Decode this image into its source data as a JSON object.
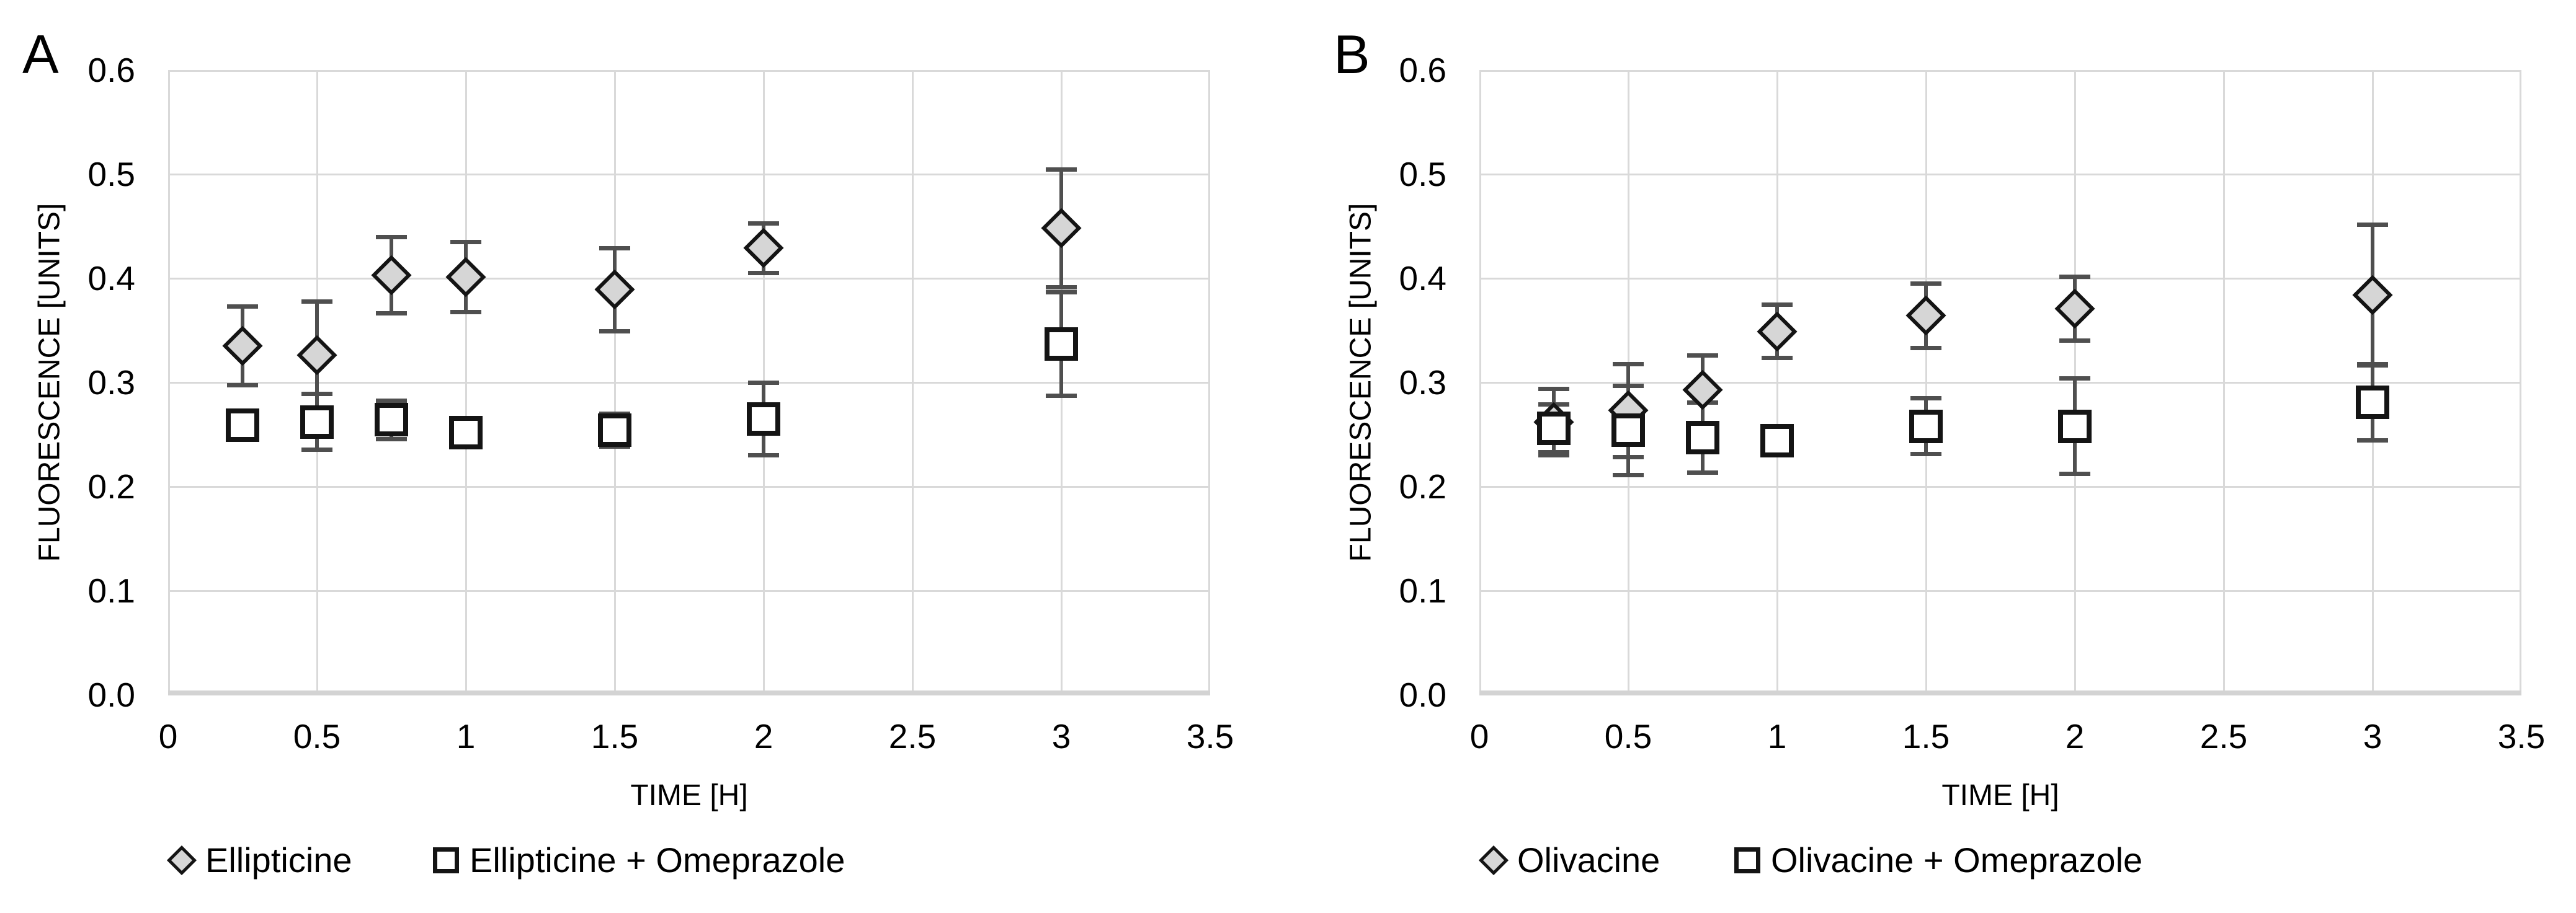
{
  "figure": {
    "description": "Two-panel fluorescence time-course scatter chart",
    "panel_labels": [
      "A",
      "B"
    ]
  },
  "colors": {
    "background": "#ffffff",
    "gridline": "#d9d9d9",
    "axis_line": "#d3d3d3",
    "error_bar": "#4f4f4f",
    "diamond_fill": "#d6d6d6",
    "square_fill": "#ffffff",
    "marker_outline": "#141414",
    "text": "#000000"
  },
  "chart_data": [
    {
      "type": "scatter",
      "panel_label": "A",
      "xlabel": "TIME [H]",
      "ylabel": "FLUORESCENCE [UNITS]",
      "xlim": [
        0,
        3.5
      ],
      "ylim": [
        0.0,
        0.6
      ],
      "grid": true,
      "legend_position": "bottom",
      "x_ticks": [
        0,
        0.5,
        1,
        1.5,
        2,
        2.5,
        3,
        3.5
      ],
      "x_tick_labels": [
        "0",
        "0.5",
        "1",
        "1.5",
        "2",
        "2.5",
        "3",
        "3.5"
      ],
      "y_ticks": [
        0.0,
        0.1,
        0.2,
        0.3,
        0.4,
        0.5,
        0.6
      ],
      "y_tick_labels": [
        "0.0",
        "0.1",
        "0.2",
        "0.3",
        "0.4",
        "0.5",
        "0.6"
      ],
      "x": [
        0.25,
        0.5,
        0.75,
        1,
        1.5,
        2,
        3
      ],
      "series": [
        {
          "name": "Ellipticine",
          "marker": "diamond",
          "values": [
            0.335,
            0.326,
            0.403,
            0.401,
            0.389,
            0.429,
            0.448
          ],
          "errors": [
            0.038,
            0.052,
            0.037,
            0.034,
            0.04,
            0.024,
            0.057
          ]
        },
        {
          "name": "Ellipticine + Omeprazole",
          "marker": "square",
          "values": [
            0.259,
            0.262,
            0.264,
            0.252,
            0.254,
            0.265,
            0.337
          ],
          "errors": [
            0.013,
            0.027,
            0.019,
            0,
            0.016,
            0.035,
            0.05
          ]
        }
      ]
    },
    {
      "type": "scatter",
      "panel_label": "B",
      "xlabel": "TIME [H]",
      "ylabel": "FLUORESCENCE [UNITS]",
      "xlim": [
        0,
        3.5
      ],
      "ylim": [
        0.0,
        0.6
      ],
      "grid": true,
      "legend_position": "bottom",
      "x_ticks": [
        0,
        0.5,
        1,
        1.5,
        2,
        2.5,
        3,
        3.5
      ],
      "x_tick_labels": [
        "0",
        "0.5",
        "1",
        "1.5",
        "2",
        "2.5",
        "3",
        "3.5"
      ],
      "y_ticks": [
        0.0,
        0.1,
        0.2,
        0.3,
        0.4,
        0.5,
        0.6
      ],
      "y_tick_labels": [
        "0.0",
        "0.1",
        "0.2",
        "0.3",
        "0.4",
        "0.5",
        "0.6"
      ],
      "x": [
        0.25,
        0.5,
        0.75,
        1,
        1.5,
        2,
        3
      ],
      "series": [
        {
          "name": "Olivacine",
          "marker": "diamond",
          "values": [
            0.262,
            0.273,
            0.293,
            0.349,
            0.364,
            0.371,
            0.384
          ],
          "errors": [
            0.032,
            0.045,
            0.033,
            0.026,
            0.031,
            0.031,
            0.068
          ]
        },
        {
          "name": "Olivacine + Omeprazole",
          "marker": "square",
          "values": [
            0.256,
            0.254,
            0.247,
            0.244,
            0.258,
            0.258,
            0.281
          ],
          "errors": [
            0.023,
            0.043,
            0.034,
            0,
            0.027,
            0.046,
            0.037
          ]
        }
      ]
    }
  ]
}
